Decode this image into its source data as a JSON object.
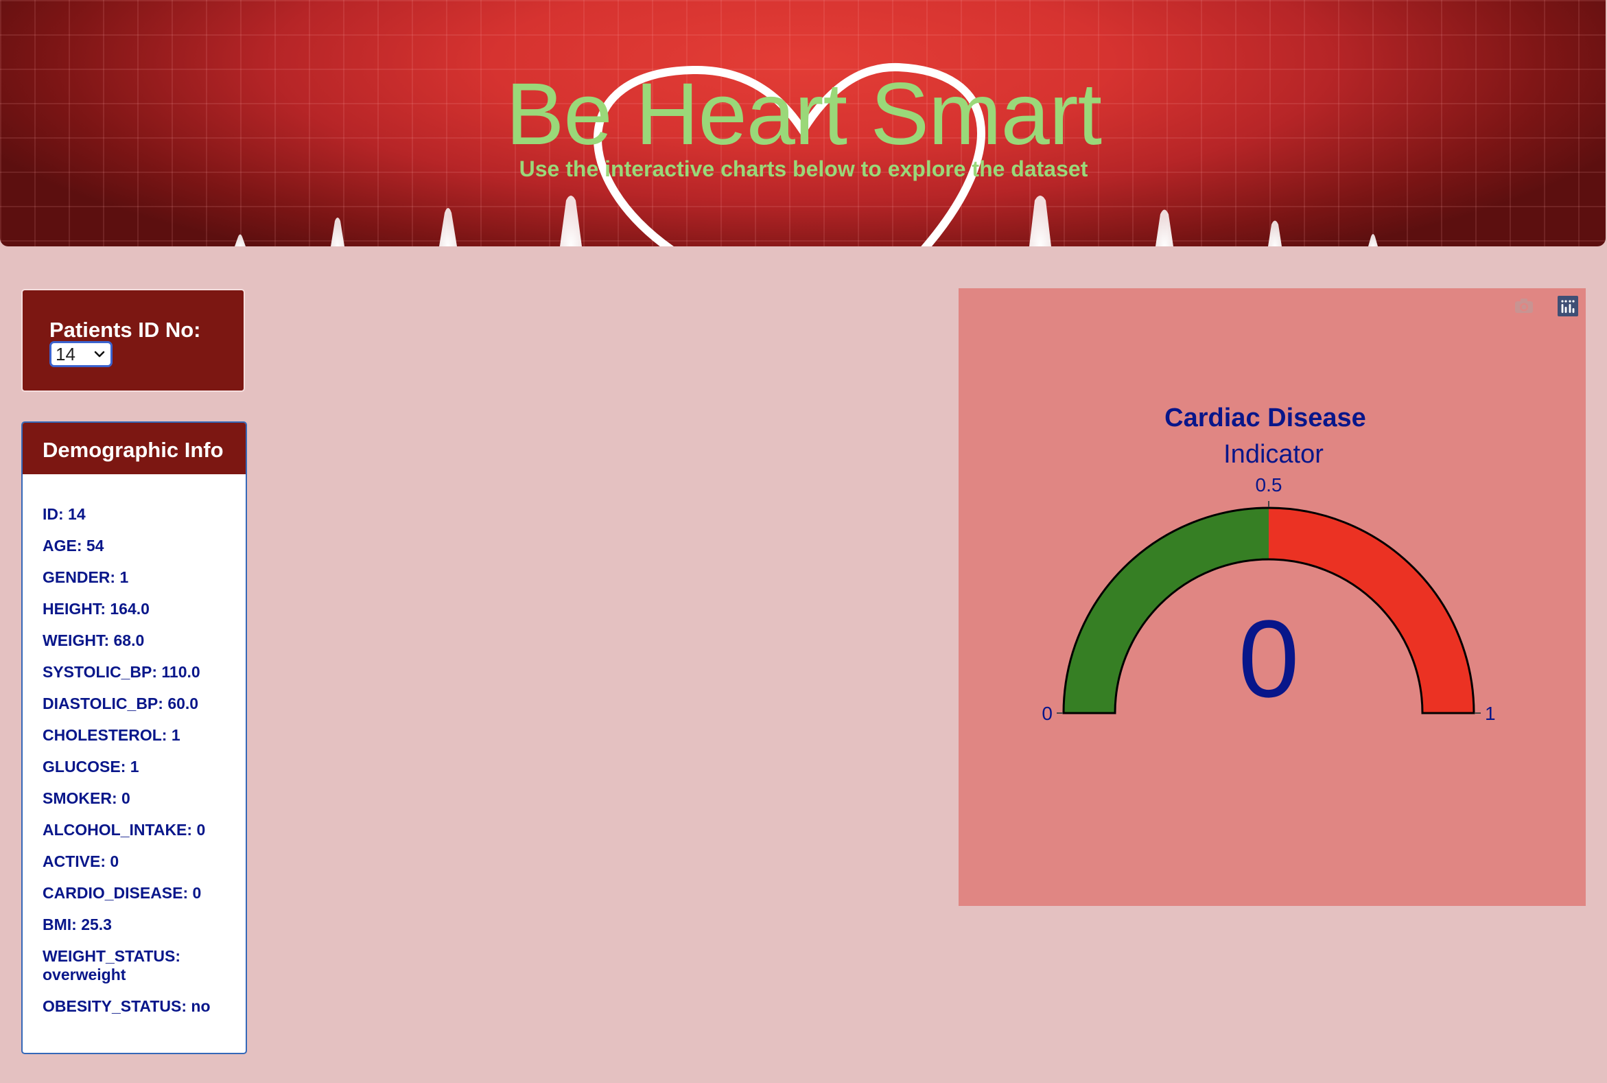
{
  "header": {
    "title": "Be Heart Smart",
    "subtitle": "Use the interactive charts below to explore the dataset"
  },
  "patient_selector": {
    "label": "Patients ID No:",
    "selected_value": "14"
  },
  "demographics": {
    "title": "Demographic Info",
    "items": [
      "ID: 14",
      "AGE: 54",
      "GENDER: 1",
      "HEIGHT: 164.0",
      "WEIGHT: 68.0",
      "SYSTOLIC_BP: 110.0",
      "DIASTOLIC_BP: 60.0",
      "CHOLESTEROL: 1",
      "GLUCOSE: 1",
      "SMOKER: 0",
      "ALCOHOL_INTAKE: 0",
      "ACTIVE: 0",
      "CARDIO_DISEASE: 0",
      "BMI: 25.3",
      "WEIGHT_STATUS: overweight",
      "OBESITY_STATUS: no"
    ]
  },
  "modebar": {
    "icons": [
      "camera-icon",
      "plotly-logo-icon"
    ]
  },
  "colors": {
    "page_background": "#e4c1c1",
    "card_dark_red": "#7c1712",
    "title_green": "#9ad879",
    "text_navy": "#08168a",
    "gauge_panel": "#e08683",
    "gauge_low": "#367f24",
    "gauge_high": "#eb3223"
  },
  "chart_data": {
    "type": "gauge",
    "title": "Cardiac Disease",
    "subtitle": "Indicator",
    "value": 0,
    "value_label": "0",
    "range": [
      0,
      1
    ],
    "ticks": [
      {
        "value": 0,
        "label": "0"
      },
      {
        "value": 0.5,
        "label": "0.5"
      },
      {
        "value": 1,
        "label": "1"
      }
    ],
    "steps": [
      {
        "range": [
          0,
          0.5
        ],
        "color": "#367f24"
      },
      {
        "range": [
          0.5,
          1
        ],
        "color": "#eb3223"
      }
    ]
  }
}
